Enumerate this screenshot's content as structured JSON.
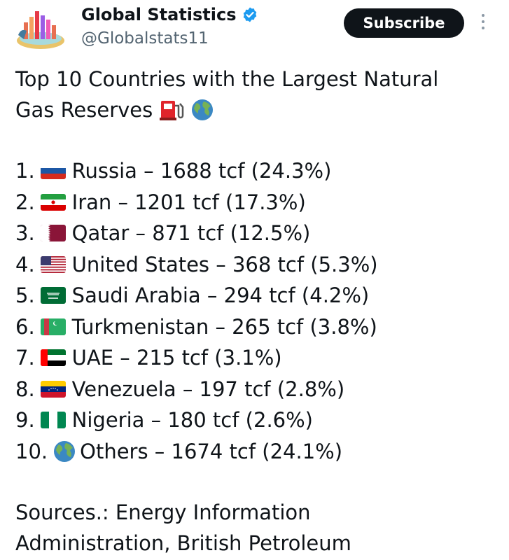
{
  "account": {
    "display_name": "Global Statistics",
    "handle": "@Globalstats11",
    "verified": true
  },
  "actions": {
    "subscribe_label": "Subscribe"
  },
  "post": {
    "title_line1": "Top 10 Countries with the Largest Natural",
    "title_line2": "Gas Reserves",
    "title_icons": [
      "fuel-pump-icon",
      "globe-icon"
    ],
    "items": [
      {
        "num": "1.",
        "flag": "russia-flag-icon",
        "text": "Russia – 1688 tcf (24.3%)"
      },
      {
        "num": "2.",
        "flag": "iran-flag-icon",
        "text": "Iran – 1201 tcf (17.3%)"
      },
      {
        "num": "3.",
        "flag": "qatar-flag-icon",
        "text": "Qatar – 871 tcf (12.5%)"
      },
      {
        "num": "4.",
        "flag": "usa-flag-icon",
        "text": "United States – 368 tcf (5.3%)"
      },
      {
        "num": "5.",
        "flag": "saudi-arabia-flag-icon",
        "text": "Saudi Arabia – 294 tcf (4.2%)"
      },
      {
        "num": "6.",
        "flag": "turkmenistan-flag-icon",
        "text": "Turkmenistan – 265 tcf (3.8%)"
      },
      {
        "num": "7.",
        "flag": "uae-flag-icon",
        "text": "UAE – 215 tcf (3.1%)"
      },
      {
        "num": "8.",
        "flag": "venezuela-flag-icon",
        "text": "Venezuela – 197 tcf (2.8%)"
      },
      {
        "num": "9.",
        "flag": "nigeria-flag-icon",
        "text": "Nigeria – 180 tcf (2.6%)"
      },
      {
        "num": "10.",
        "flag": "globe-icon",
        "text": "Others – 1674 tcf (24.1%)"
      }
    ],
    "sources_line1": "Sources.: Energy Information",
    "sources_line2": "Administration, British Petroleum"
  },
  "colors": {
    "text": "#0f1419",
    "secondary": "#536471",
    "verified_badge": "#1d9bf0",
    "button_bg": "#0f1419"
  }
}
